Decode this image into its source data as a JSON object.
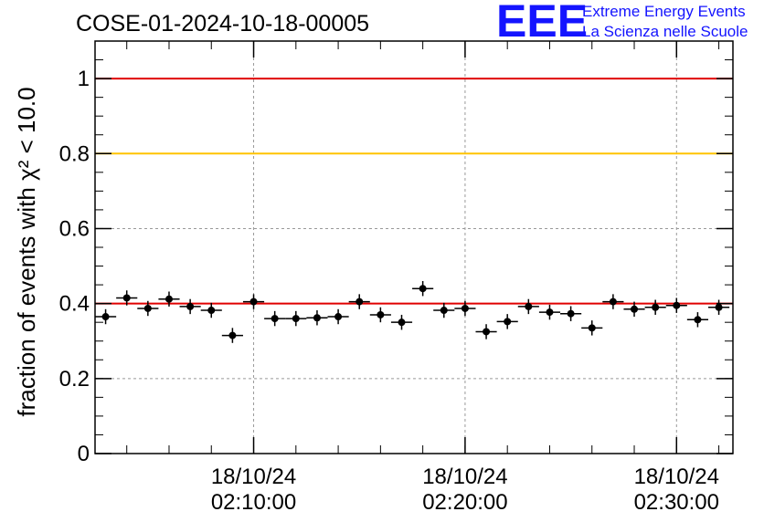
{
  "title": "COSE-01-2024-10-18-00005",
  "logo": {
    "mark": "EEE",
    "line1": "Extreme Energy Events",
    "line2": "La Scienza nelle Scuole",
    "color": "#1414ff"
  },
  "chart_data": {
    "type": "scatter",
    "ylabel": "fraction of events with χ² < 10.0",
    "ylim": [
      0,
      1.1
    ],
    "yticks": [
      0,
      0.2,
      0.4,
      0.6,
      0.8,
      1
    ],
    "ytick_labels": [
      "0",
      "0.2",
      "0.4",
      "0.6",
      "0.8",
      "1"
    ],
    "xlim": [
      "2024-10-18 02:02:30",
      "2024-10-18 02:32:40"
    ],
    "xticks": [
      {
        "time": "2024-10-18 02:10:00",
        "date_label": "18/10/24",
        "time_label": "02:10:00"
      },
      {
        "time": "2024-10-18 02:20:00",
        "date_label": "18/10/24",
        "time_label": "02:20:00"
      },
      {
        "time": "2024-10-18 02:30:00",
        "date_label": "18/10/24",
        "time_label": "02:30:00"
      }
    ],
    "grid": true,
    "reference_lines": [
      {
        "y": 1.0,
        "color": "#e00000"
      },
      {
        "y": 0.8,
        "color": "#ffc400"
      },
      {
        "y": 0.4,
        "color": "#e00000"
      }
    ],
    "series": [
      {
        "color": "#000000",
        "x": [
          "02:03:00",
          "02:04:00",
          "02:05:00",
          "02:06:00",
          "02:07:00",
          "02:08:00",
          "02:09:00",
          "02:10:00",
          "02:11:00",
          "02:12:00",
          "02:13:00",
          "02:14:00",
          "02:15:00",
          "02:16:00",
          "02:17:00",
          "02:18:00",
          "02:19:00",
          "02:20:00",
          "02:21:00",
          "02:22:00",
          "02:23:00",
          "02:24:00",
          "02:25:00",
          "02:26:00",
          "02:27:00",
          "02:28:00",
          "02:29:00",
          "02:30:00",
          "02:31:00",
          "02:32:00"
        ],
        "y": [
          0.365,
          0.415,
          0.387,
          0.412,
          0.392,
          0.382,
          0.315,
          0.405,
          0.36,
          0.36,
          0.362,
          0.365,
          0.405,
          0.37,
          0.35,
          0.44,
          0.382,
          0.387,
          0.325,
          0.352,
          0.392,
          0.377,
          0.373,
          0.335,
          0.405,
          0.385,
          0.39,
          0.395,
          0.357,
          0.39
        ],
        "y_err": [
          0.02,
          0.02,
          0.02,
          0.02,
          0.02,
          0.02,
          0.02,
          0.02,
          0.02,
          0.02,
          0.02,
          0.02,
          0.02,
          0.02,
          0.02,
          0.02,
          0.02,
          0.02,
          0.02,
          0.02,
          0.02,
          0.02,
          0.02,
          0.02,
          0.02,
          0.02,
          0.02,
          0.02,
          0.02,
          0.02
        ],
        "x_halfwidth_minutes": 0.5
      }
    ]
  }
}
